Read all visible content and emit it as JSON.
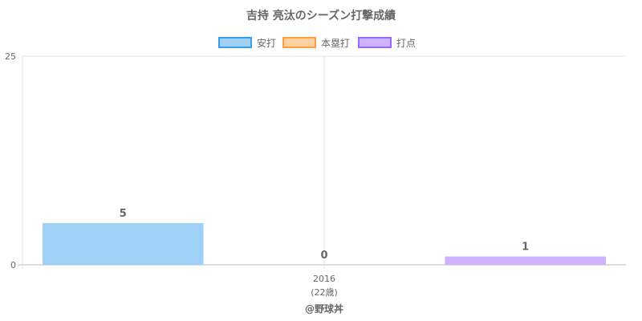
{
  "chart_data": {
    "type": "bar",
    "title": "吉持 亮汰のシーズン打撃成績",
    "categories": [
      "2016"
    ],
    "category_sublabels": [
      "(22歳)"
    ],
    "series": [
      {
        "name": "安打",
        "values": [
          5
        ],
        "fill": "#9fd0f5",
        "border": "#3a9fe6"
      },
      {
        "name": "本塁打",
        "values": [
          0
        ],
        "fill": "#ffcf9f",
        "border": "#ff9f40"
      },
      {
        "name": "打点",
        "values": [
          1
        ],
        "fill": "#ccb2ff",
        "border": "#9966ff"
      }
    ],
    "y_ticks": [
      "0",
      "25"
    ],
    "ylim": [
      0,
      25
    ],
    "legend_position": "top",
    "grid": true
  },
  "credit": "@野球丼"
}
